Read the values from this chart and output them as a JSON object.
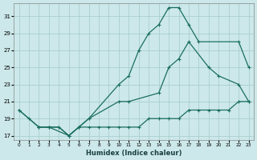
{
  "xlabel": "Humidex (Indice chaleur)",
  "bg_color": "#cce8ea",
  "grid_color": "#aacece",
  "line_color": "#1a6e60",
  "xlim": [
    -0.5,
    23.5
  ],
  "ylim": [
    16.5,
    32.5
  ],
  "xticks": [
    0,
    1,
    2,
    3,
    4,
    5,
    6,
    7,
    8,
    9,
    10,
    11,
    12,
    13,
    14,
    15,
    16,
    17,
    18,
    19,
    20,
    21,
    22,
    23
  ],
  "yticks": [
    17,
    19,
    21,
    23,
    25,
    27,
    29,
    31
  ],
  "curve1_x": [
    0,
    1,
    2,
    3,
    4,
    5,
    6,
    7,
    10,
    11,
    12,
    13,
    14,
    15,
    16,
    17,
    18,
    22,
    23
  ],
  "curve1_y": [
    20,
    19,
    18,
    18,
    18,
    17,
    18,
    19,
    23,
    24,
    27,
    29,
    30,
    32,
    32,
    30,
    28,
    28,
    25
  ],
  "curve2_x": [
    2,
    3,
    5,
    6,
    7,
    10,
    11,
    14,
    15,
    16,
    17,
    19,
    20,
    22,
    23
  ],
  "curve2_y": [
    18,
    18,
    17,
    18,
    19,
    21,
    21,
    22,
    25,
    26,
    28,
    25,
    24,
    23,
    21
  ],
  "curve3_x": [
    0,
    2,
    3,
    4,
    5,
    6,
    7,
    8,
    9,
    10,
    11,
    12,
    13,
    14,
    15,
    16,
    17,
    18,
    19,
    20,
    21,
    22,
    23
  ],
  "curve3_y": [
    20,
    18,
    18,
    18,
    17,
    18,
    18,
    18,
    18,
    18,
    18,
    18,
    19,
    19,
    19,
    19,
    20,
    20,
    20,
    20,
    20,
    21,
    21
  ]
}
